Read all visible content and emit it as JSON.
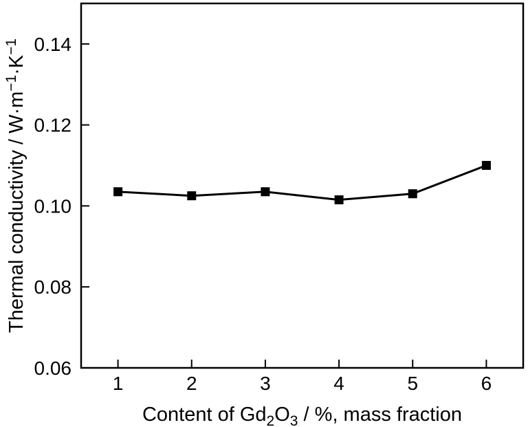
{
  "figure": {
    "background": "#ffffff",
    "axis_color": "#000000",
    "line_color": "#000000",
    "marker_color": "#000000"
  },
  "chart_data": {
    "type": "line",
    "title": "",
    "x": [
      1,
      2,
      3,
      4,
      5,
      6
    ],
    "series": [
      {
        "name": "thermal conductivity",
        "values": [
          0.1035,
          0.1025,
          0.1035,
          0.1015,
          0.103,
          0.11
        ]
      }
    ],
    "xlabel": "Content of Gd2O3 / %, mass fraction",
    "ylabel": "Thermal conductivity / W·m−1·K−1",
    "xlabel_rich": [
      {
        "t": "Content of Gd"
      },
      {
        "t": "2",
        "sub": true
      },
      {
        "t": "O"
      },
      {
        "t": "3",
        "sub": true
      },
      {
        "t": " / %, mass fraction"
      }
    ],
    "ylabel_rich": [
      {
        "t": "Thermal conductivity / W·m"
      },
      {
        "t": "−1",
        "sup": true
      },
      {
        "t": "·K"
      },
      {
        "t": "−1",
        "sup": true
      }
    ],
    "xlim": [
      0.5,
      6.5
    ],
    "ylim": [
      0.06,
      0.15
    ],
    "xticks": [
      {
        "value": 1,
        "label": "1"
      },
      {
        "value": 2,
        "label": "2"
      },
      {
        "value": 3,
        "label": "3"
      },
      {
        "value": 4,
        "label": "4"
      },
      {
        "value": 5,
        "label": "5"
      },
      {
        "value": 6,
        "label": "6"
      }
    ],
    "yticks": [
      {
        "value": 0.06,
        "label": "0.06"
      },
      {
        "value": 0.08,
        "label": "0.08"
      },
      {
        "value": 0.1,
        "label": "0.10"
      },
      {
        "value": 0.12,
        "label": "0.12"
      },
      {
        "value": 0.14,
        "label": "0.14"
      }
    ],
    "grid": false,
    "legend": null,
    "marker": "square",
    "frame": "box",
    "tick_direction": "in"
  }
}
